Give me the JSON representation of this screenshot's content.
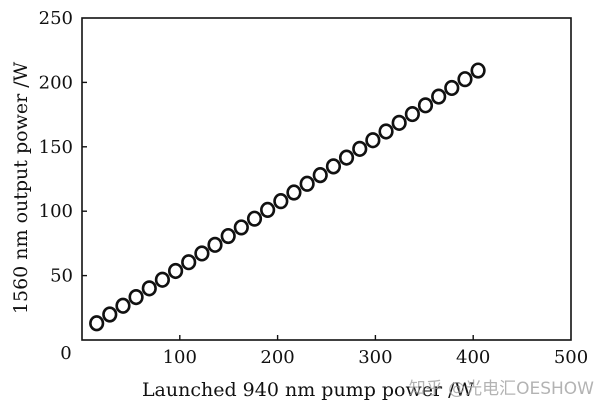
{
  "chart_data": {
    "type": "scatter",
    "title": "",
    "xlabel": "Launched 940 nm pump power /W",
    "ylabel": "1560 nm output power /W",
    "xlim": [
      0,
      500
    ],
    "ylim": [
      0,
      250
    ],
    "xticks": [
      0,
      100,
      200,
      300,
      400,
      500
    ],
    "yticks": [
      0,
      50,
      100,
      150,
      200,
      250
    ],
    "grid": false,
    "legend": null,
    "marker": "open-circle",
    "series": [
      {
        "name": "1560 nm output",
        "x": [
          15,
          28.4,
          41.9,
          55.3,
          68.8,
          82.2,
          95.7,
          109.1,
          122.6,
          136,
          149.5,
          162.9,
          176.4,
          189.8,
          203.3,
          216.7,
          230.2,
          243.6,
          257.1,
          270.5,
          284,
          297.4,
          310.9,
          324.3,
          337.8,
          351.2,
          364.7,
          378.1,
          391.6,
          405
        ],
        "y": [
          13.0,
          19.8,
          26.6,
          33.3,
          40.1,
          46.8,
          53.6,
          60.4,
          67.2,
          73.9,
          80.7,
          87.4,
          94.2,
          101.0,
          107.8,
          114.5,
          121.3,
          128.0,
          134.8,
          141.6,
          148.4,
          155.1,
          161.9,
          168.6,
          175.4,
          182.2,
          189.0,
          195.7,
          202.5,
          209.2
        ]
      }
    ]
  },
  "watermark": "知乎 @光电汇OESHOW",
  "colors": {
    "axis": "#111111",
    "marker": "#111111",
    "watermark": "#9a9a9a"
  }
}
